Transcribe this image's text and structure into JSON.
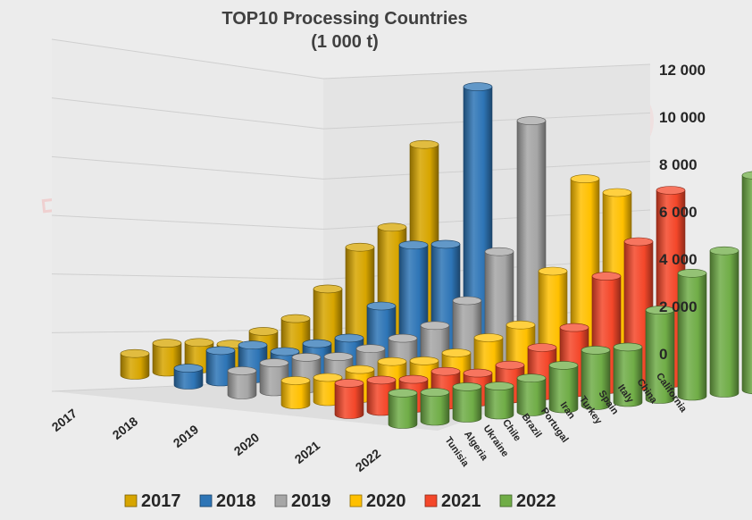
{
  "chart_data": {
    "type": "bar",
    "style": "3d-cylinder",
    "title": "TOP10 Processing Countries",
    "subtitle": "(1 000 t)",
    "categories": [
      "Tunisia",
      "Algeria",
      "Ukraine",
      "Chile",
      "Brazil",
      "Portugal",
      "Iran",
      "Turkey",
      "Spain",
      "Italy",
      "China",
      "California"
    ],
    "series": [
      {
        "name": "2017",
        "color": "#d7a500",
        "values": [
          900,
          1200,
          1100,
          900,
          1300,
          1700,
          2800,
          4400,
          5100,
          8400,
          0,
          0
        ]
      },
      {
        "name": "2018",
        "color": "#2e75b6",
        "values": [
          700,
          1300,
          1400,
          1000,
          1200,
          1300,
          2500,
          4900,
          4800,
          11200,
          0,
          0
        ]
      },
      {
        "name": "2019",
        "color": "#a6a6a6",
        "values": [
          1000,
          1200,
          1300,
          1200,
          1400,
          1700,
          2100,
          3000,
          4900,
          10200,
          0,
          0
        ]
      },
      {
        "name": "2020",
        "color": "#ffc000",
        "values": [
          1000,
          1000,
          1200,
          1400,
          1300,
          1500,
          2000,
          2400,
          4500,
          8200,
          7500,
          0
        ]
      },
      {
        "name": "2021",
        "color": "#f4472a",
        "values": [
          1300,
          1300,
          1200,
          1400,
          1200,
          1400,
          2000,
          2700,
          4700,
          6000,
          8000,
          0
        ]
      },
      {
        "name": "2022",
        "color": "#70ad47",
        "values": [
          1300,
          1200,
          1300,
          1200,
          1400,
          1800,
          2300,
          2300,
          3700,
          5100,
          5900,
          8900
        ]
      }
    ],
    "y_ticks": [
      "12 000",
      "10 000",
      "8 000",
      "6 000",
      "4 000",
      "2 000",
      "0"
    ],
    "ylim": [
      0,
      12000
    ],
    "grid": true,
    "legend_position": "bottom",
    "watermark": "TomatoNews"
  }
}
